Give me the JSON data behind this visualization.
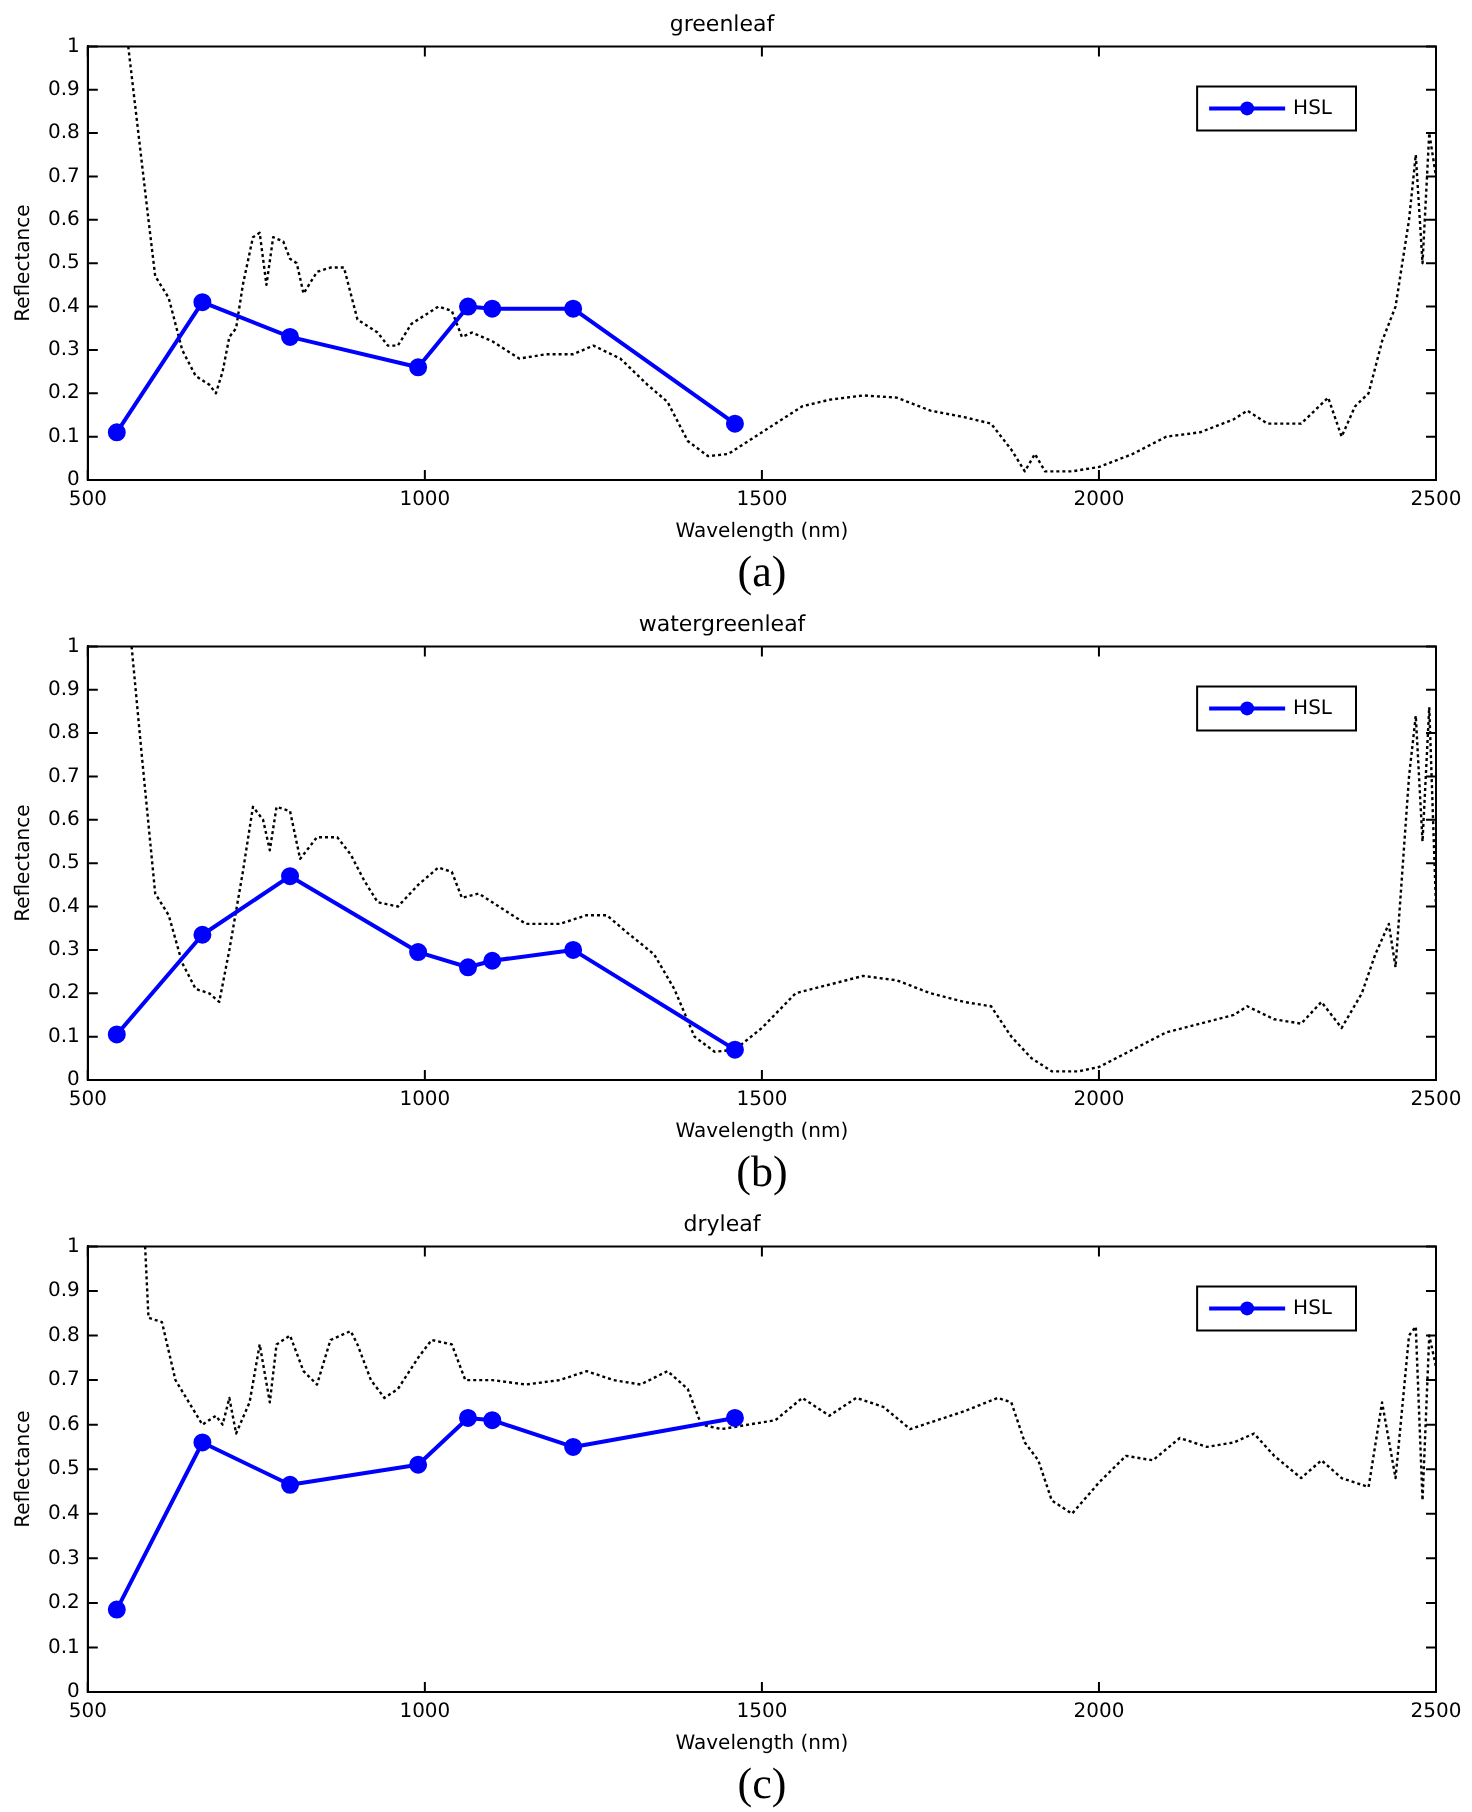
{
  "chart_data": [
    {
      "type": "line",
      "title": "greenleaf",
      "xlabel": "Wavelength (nm)",
      "ylabel": "Reflectance",
      "annotations": [
        "(a)"
      ],
      "xlim": [
        500,
        2500
      ],
      "xticks": [
        500,
        1000,
        1500,
        2000,
        2500
      ],
      "ylim": [
        0,
        1
      ],
      "yticks": [
        0,
        0.1,
        0.2,
        0.3,
        0.4,
        0.5,
        0.6,
        0.7,
        0.8,
        0.9,
        1
      ],
      "grid": false,
      "legend": "top right",
      "series": [
        {
          "name": "HSL",
          "color": "#0000ff",
          "marker": "circle",
          "line_style": "solid",
          "x": [
            543,
            670,
            800,
            990,
            1064,
            1100,
            1220,
            1460
          ],
          "values": [
            0.11,
            0.41,
            0.33,
            0.26,
            0.4,
            0.395,
            0.395,
            0.13
          ]
        },
        {
          "color": "#000000",
          "marker": "none",
          "line_style": "dotted",
          "x": [
            560,
            575,
            590,
            600,
            620,
            640,
            660,
            680,
            690,
            700,
            710,
            720,
            730,
            745,
            755,
            765,
            775,
            790,
            800,
            810,
            820,
            840,
            860,
            880,
            900,
            930,
            945,
            960,
            980,
            1000,
            1020,
            1040,
            1055,
            1070,
            1100,
            1140,
            1180,
            1220,
            1250,
            1290,
            1330,
            1360,
            1390,
            1420,
            1450,
            1480,
            1520,
            1560,
            1600,
            1650,
            1700,
            1750,
            1800,
            1840,
            1870,
            1890,
            1905,
            1920,
            1960,
            2000,
            2050,
            2100,
            2150,
            2200,
            2220,
            2250,
            2300,
            2340,
            2360,
            2380,
            2400,
            2420,
            2440,
            2460,
            2470,
            2480,
            2490,
            2500
          ],
          "values": [
            1,
            0.8,
            0.6,
            0.47,
            0.42,
            0.3,
            0.24,
            0.22,
            0.2,
            0.25,
            0.33,
            0.35,
            0.45,
            0.56,
            0.57,
            0.45,
            0.56,
            0.55,
            0.51,
            0.5,
            0.43,
            0.48,
            0.49,
            0.49,
            0.37,
            0.34,
            0.31,
            0.31,
            0.36,
            0.38,
            0.4,
            0.39,
            0.33,
            0.34,
            0.32,
            0.28,
            0.29,
            0.29,
            0.31,
            0.28,
            0.22,
            0.18,
            0.09,
            0.055,
            0.06,
            0.09,
            0.13,
            0.17,
            0.185,
            0.195,
            0.19,
            0.16,
            0.145,
            0.13,
            0.07,
            0.02,
            0.06,
            0.02,
            0.02,
            0.03,
            0.06,
            0.1,
            0.11,
            0.14,
            0.16,
            0.13,
            0.13,
            0.19,
            0.1,
            0.17,
            0.2,
            0.32,
            0.4,
            0.6,
            0.75,
            0.5,
            0.8,
            0.7
          ]
        }
      ]
    },
    {
      "type": "line",
      "title": "watergreenleaf",
      "xlabel": "Wavelength (nm)",
      "ylabel": "Reflectance",
      "annotations": [
        "(b)"
      ],
      "xlim": [
        500,
        2500
      ],
      "xticks": [
        500,
        1000,
        1500,
        2000,
        2500
      ],
      "ylim": [
        0,
        1
      ],
      "yticks": [
        0,
        0.1,
        0.2,
        0.3,
        0.4,
        0.5,
        0.6,
        0.7,
        0.8,
        0.9,
        1
      ],
      "grid": false,
      "legend": "top right",
      "series": [
        {
          "name": "HSL",
          "color": "#0000ff",
          "marker": "circle",
          "line_style": "solid",
          "x": [
            543,
            670,
            800,
            990,
            1064,
            1100,
            1220,
            1460
          ],
          "values": [
            0.105,
            0.335,
            0.47,
            0.295,
            0.26,
            0.275,
            0.3,
            0.07
          ]
        },
        {
          "color": "#000000",
          "marker": "none",
          "line_style": "dotted",
          "x": [
            565,
            580,
            600,
            620,
            640,
            660,
            680,
            695,
            710,
            730,
            745,
            760,
            770,
            780,
            800,
            815,
            840,
            870,
            890,
            910,
            930,
            960,
            990,
            1020,
            1040,
            1055,
            1080,
            1110,
            1150,
            1200,
            1240,
            1270,
            1300,
            1340,
            1370,
            1400,
            1430,
            1460,
            1500,
            1550,
            1600,
            1650,
            1700,
            1750,
            1800,
            1840,
            1870,
            1900,
            1930,
            1970,
            2000,
            2050,
            2100,
            2150,
            2200,
            2220,
            2260,
            2300,
            2330,
            2360,
            2390,
            2410,
            2430,
            2440,
            2460,
            2470,
            2480,
            2490,
            2500
          ],
          "values": [
            1,
            0.75,
            0.43,
            0.38,
            0.27,
            0.21,
            0.2,
            0.18,
            0.3,
            0.48,
            0.63,
            0.6,
            0.53,
            0.63,
            0.62,
            0.51,
            0.56,
            0.56,
            0.52,
            0.46,
            0.41,
            0.4,
            0.45,
            0.49,
            0.48,
            0.42,
            0.43,
            0.4,
            0.36,
            0.36,
            0.38,
            0.38,
            0.34,
            0.29,
            0.21,
            0.1,
            0.065,
            0.07,
            0.12,
            0.2,
            0.22,
            0.24,
            0.23,
            0.2,
            0.18,
            0.17,
            0.1,
            0.05,
            0.02,
            0.02,
            0.03,
            0.07,
            0.11,
            0.13,
            0.15,
            0.17,
            0.14,
            0.13,
            0.18,
            0.12,
            0.2,
            0.29,
            0.36,
            0.26,
            0.7,
            0.84,
            0.55,
            0.86,
            0.4
          ]
        }
      ]
    },
    {
      "type": "line",
      "title": "dryleaf",
      "xlabel": "Wavelength (nm)",
      "ylabel": "Reflectance",
      "annotations": [
        "(c)"
      ],
      "xlim": [
        500,
        2500
      ],
      "xticks": [
        500,
        1000,
        1500,
        2000,
        2500
      ],
      "ylim": [
        0,
        1
      ],
      "yticks": [
        0,
        0.1,
        0.2,
        0.3,
        0.4,
        0.5,
        0.6,
        0.7,
        0.8,
        0.9,
        1
      ],
      "grid": false,
      "legend": "top right",
      "series": [
        {
          "name": "HSL",
          "color": "#0000ff",
          "marker": "circle",
          "line_style": "solid",
          "x": [
            543,
            670,
            800,
            990,
            1064,
            1100,
            1220,
            1460
          ],
          "values": [
            0.185,
            0.56,
            0.465,
            0.51,
            0.615,
            0.61,
            0.55,
            0.615
          ]
        },
        {
          "color": "#000000",
          "marker": "none",
          "line_style": "dotted",
          "x": [
            585,
            590,
            610,
            630,
            650,
            670,
            690,
            700,
            710,
            720,
            740,
            755,
            770,
            780,
            800,
            820,
            840,
            860,
            890,
            900,
            920,
            940,
            960,
            990,
            1010,
            1040,
            1060,
            1100,
            1150,
            1200,
            1240,
            1280,
            1320,
            1360,
            1390,
            1410,
            1440,
            1480,
            1520,
            1560,
            1600,
            1640,
            1680,
            1720,
            1760,
            1800,
            1850,
            1870,
            1890,
            1910,
            1930,
            1960,
            2000,
            2040,
            2080,
            2120,
            2160,
            2200,
            2230,
            2260,
            2300,
            2330,
            2360,
            2400,
            2420,
            2440,
            2460,
            2470,
            2480,
            2490,
            2500
          ],
          "values": [
            1,
            0.84,
            0.83,
            0.7,
            0.65,
            0.6,
            0.62,
            0.6,
            0.66,
            0.58,
            0.65,
            0.78,
            0.65,
            0.78,
            0.8,
            0.72,
            0.69,
            0.79,
            0.81,
            0.78,
            0.7,
            0.66,
            0.68,
            0.75,
            0.79,
            0.78,
            0.7,
            0.7,
            0.69,
            0.7,
            0.72,
            0.7,
            0.69,
            0.72,
            0.68,
            0.6,
            0.59,
            0.6,
            0.61,
            0.66,
            0.62,
            0.66,
            0.64,
            0.59,
            0.61,
            0.63,
            0.66,
            0.65,
            0.56,
            0.52,
            0.43,
            0.4,
            0.47,
            0.53,
            0.52,
            0.57,
            0.55,
            0.56,
            0.58,
            0.53,
            0.48,
            0.52,
            0.48,
            0.46,
            0.65,
            0.48,
            0.8,
            0.82,
            0.43,
            0.8,
            0.73
          ]
        }
      ]
    }
  ]
}
